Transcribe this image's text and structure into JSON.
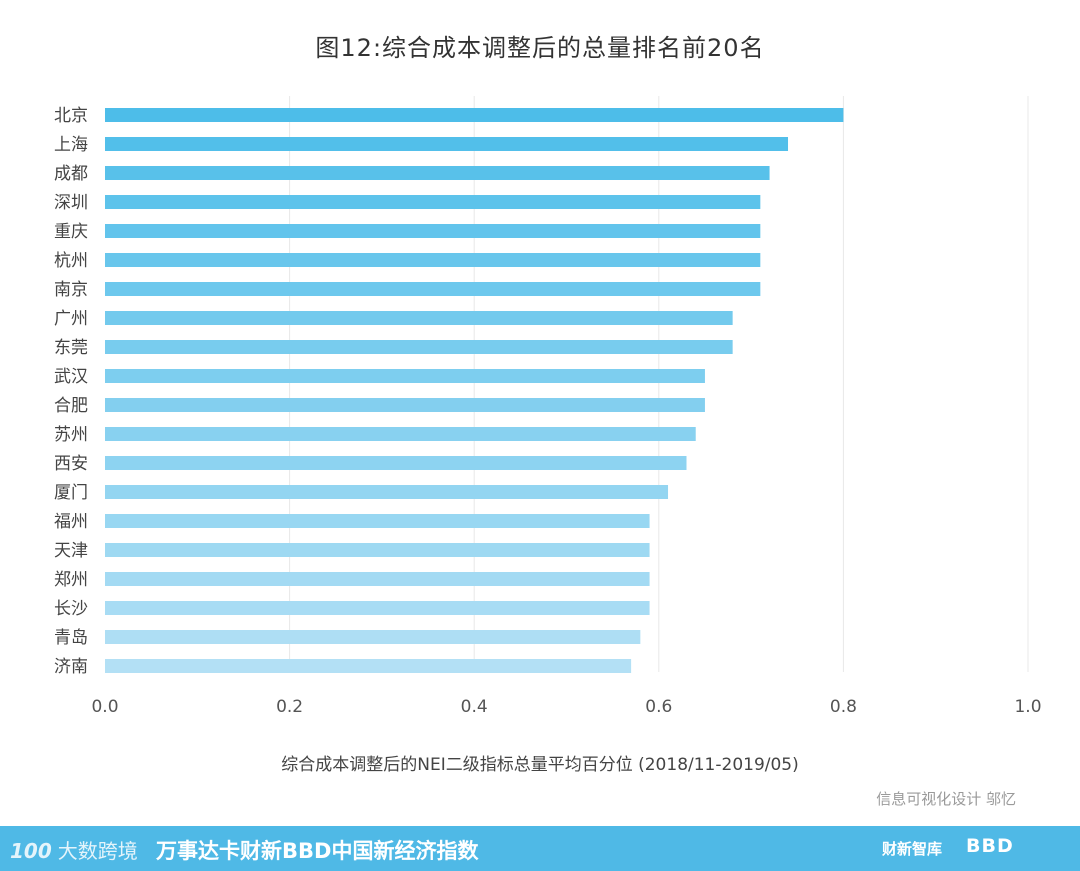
{
  "title": "图12:综合成本调整后的总量排名前20名",
  "credit": "信息可视化设计 邬忆",
  "footer": {
    "brand_mark": "100",
    "brand_text": "大数跨境",
    "title": "万事达卡财新BBD中国新经济指数",
    "logo_1": "财新智库",
    "logo_2": "BBD"
  },
  "colors": {
    "bar_top": "#4dbde9",
    "bar_bottom": "#b3e0f5",
    "gridline": "#e8e8e8",
    "footer": "#4fb9e6"
  },
  "chart_data": {
    "type": "bar",
    "orientation": "horizontal",
    "title": "图12:综合成本调整后的总量排名前20名",
    "xlabel": "综合成本调整后的NEI二级指标总量平均百分位 (2018/11-2019/05)",
    "ylabel": "",
    "xlim": [
      0,
      1.0
    ],
    "xticks": [
      "0.0",
      "0.2",
      "0.4",
      "0.6",
      "0.8",
      "1.0"
    ],
    "grid": true,
    "categories": [
      "北京",
      "上海",
      "成都",
      "深圳",
      "重庆",
      "杭州",
      "南京",
      "广州",
      "东莞",
      "武汉",
      "合肥",
      "苏州",
      "西安",
      "厦门",
      "福州",
      "天津",
      "郑州",
      "长沙",
      "青岛",
      "济南"
    ],
    "values": [
      0.8,
      0.74,
      0.72,
      0.71,
      0.71,
      0.71,
      0.71,
      0.68,
      0.68,
      0.65,
      0.65,
      0.64,
      0.63,
      0.61,
      0.59,
      0.59,
      0.59,
      0.59,
      0.58,
      0.57
    ]
  }
}
